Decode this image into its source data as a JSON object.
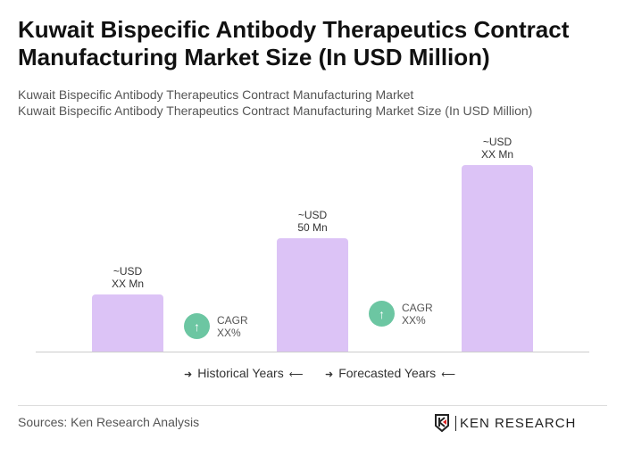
{
  "title": "Kuwait Bispecific Antibody Therapeutics Contract Manufacturing Market Size (In USD Million)",
  "subtitle1": "Kuwait Bispecific Antibody Therapeutics Contract Manufacturing Market",
  "subtitle2": "Kuwait Bispecific Antibody Therapeutics Contract Manufacturing Market Size (In USD Million)",
  "chart_data": {
    "type": "bar",
    "values": [
      25,
      50,
      82
    ],
    "data_labels": [
      [
        "~USD",
        "XX Mn"
      ],
      [
        "~USD",
        "50 Mn"
      ],
      [
        "~USD",
        "XX Mn"
      ]
    ],
    "bar_color": "#dcc3f6",
    "annotations": [
      {
        "line1": "CAGR",
        "line2": "XX%"
      },
      {
        "line1": "CAGR",
        "line2": "XX%"
      }
    ],
    "annotation_color": "#6cc6a2",
    "legend": [
      "Historical Years",
      "Forecasted Years"
    ],
    "legend_placement": "bottom",
    "grid": false
  },
  "source": "Sources: Ken Research Analysis",
  "logo_text": "KEN RESEARCH"
}
